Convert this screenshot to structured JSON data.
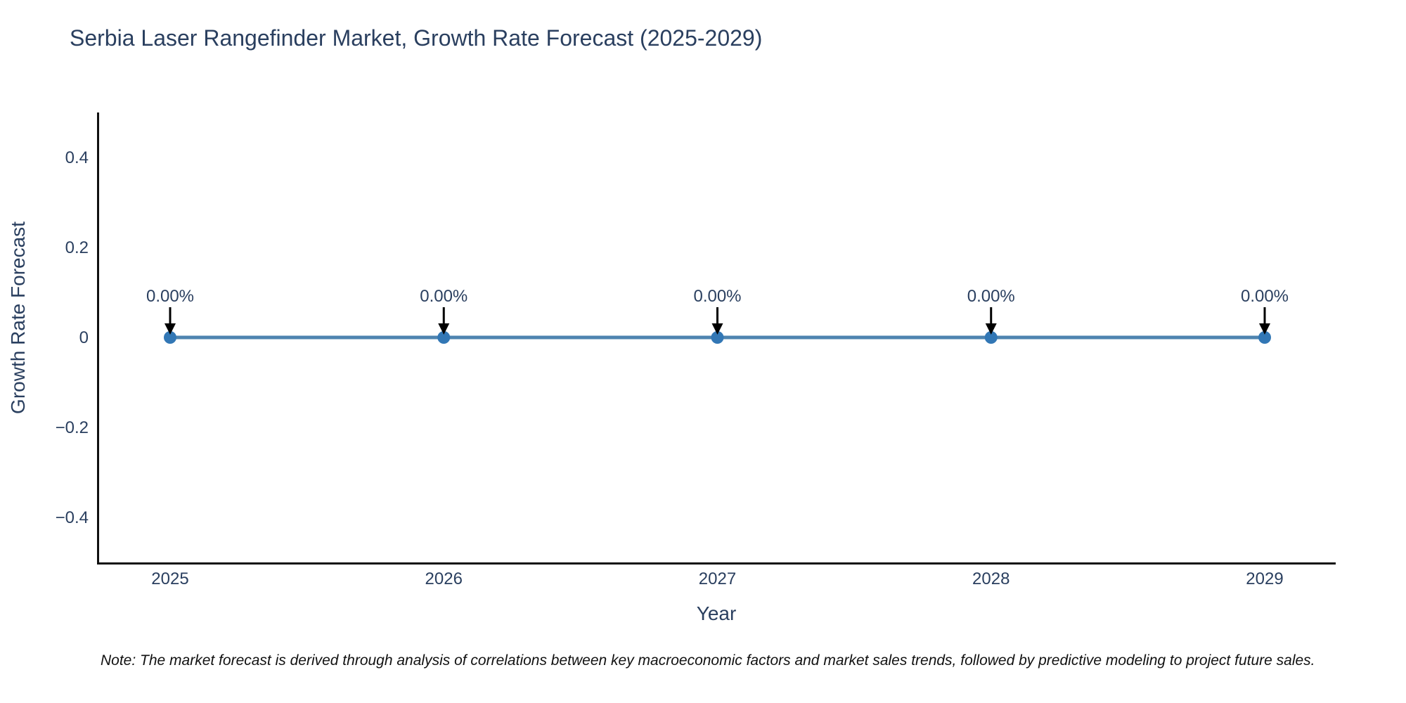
{
  "header": {
    "title": "Serbia Laser Rangefinder Market, Growth Rate Forecast (2025-2029)"
  },
  "footer": {
    "note": "Note: The market forecast is derived through analysis of correlations between key macroeconomic factors and market sales trends, followed by predictive modeling to project future sales."
  },
  "chart_data": {
    "type": "line",
    "title": "Serbia Laser Rangefinder Market, Growth Rate Forecast (2025-2029)",
    "x": [
      2025,
      2026,
      2027,
      2028,
      2029
    ],
    "x_tick_labels": [
      "2025",
      "2026",
      "2027",
      "2028",
      "2029"
    ],
    "series": [
      {
        "name": "Growth Rate Forecast",
        "values": [
          0,
          0,
          0,
          0,
          0
        ]
      }
    ],
    "point_labels": [
      "0.00%",
      "0.00%",
      "0.00%",
      "0.00%",
      "0.00%"
    ],
    "xlabel": "Year",
    "ylabel": "Growth Rate Forecast",
    "ylim": [
      -0.5,
      0.5
    ],
    "yticks": [
      0.4,
      0.2,
      0,
      -0.2,
      -0.4
    ],
    "ytick_labels": [
      "0.4",
      "0.2",
      "0",
      "−0.2",
      "−0.4"
    ],
    "grid": false,
    "legend": "none",
    "annotations_have_arrows": true,
    "colors": {
      "line": "#4e84b0",
      "marker": "#3277b5",
      "axis": "#101010",
      "tick_text": "#2a3f5f",
      "annotation_text": "#2a3f5f",
      "arrow": "#000000",
      "title_text": "#2a3f5f",
      "note_text": "#111111",
      "background": "#ffffff"
    }
  }
}
